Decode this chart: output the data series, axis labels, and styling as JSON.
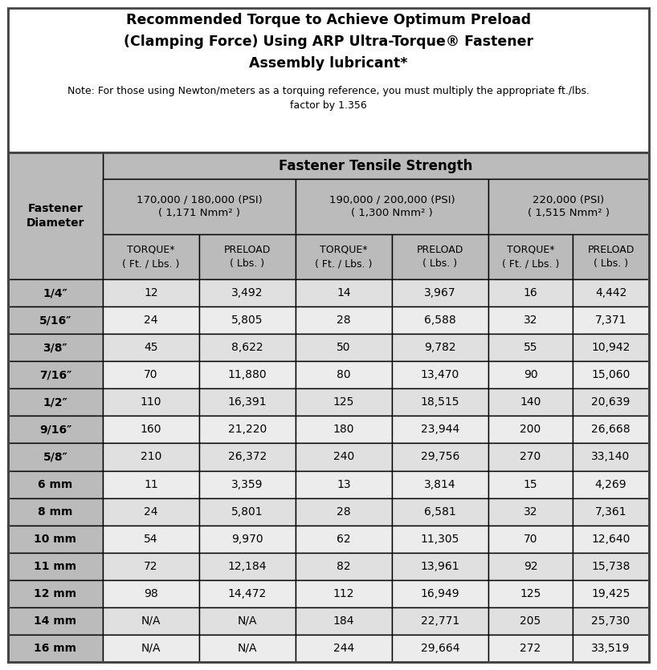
{
  "title_line1": "Recommended Torque to Achieve Optimum Preload",
  "title_line2": "(Clamping Force) Using ARP Ultra-Torque® Fastener",
  "title_line3": "Assembly lubricant*",
  "note_line1": "Note: For those using Newton/meters as a torquing reference, you must multiply the appropriate ft./lbs.",
  "note_line2": "factor by 1.356",
  "col_group_header": "Fastener Tensile Strength",
  "psi_labels": [
    "170,000 / 180,000 (PSI)\n( 1,171 Nmm² )",
    "190,000 / 200,000 (PSI)\n( 1,300 Nmm² )",
    "220,000 (PSI)\n( 1,515 Nmm² )"
  ],
  "sub_labels": [
    "TORQUE*\n( Ft. / Lbs. )",
    "PRELOAD\n( Lbs. )",
    "TORQUE*\n( Ft. / Lbs. )",
    "PRELOAD\n( Lbs. )",
    "TORQUE*\n( Ft. / Lbs. )",
    "PRELOAD\n( Lbs. )"
  ],
  "row_header": "Fastener\nDiameter",
  "rows": [
    [
      "1/4″",
      "12",
      "3,492",
      "14",
      "3,967",
      "16",
      "4,442"
    ],
    [
      "5/16″",
      "24",
      "5,805",
      "28",
      "6,588",
      "32",
      "7,371"
    ],
    [
      "3/8″",
      "45",
      "8,622",
      "50",
      "9,782",
      "55",
      "10,942"
    ],
    [
      "7/16″",
      "70",
      "11,880",
      "80",
      "13,470",
      "90",
      "15,060"
    ],
    [
      "1/2″",
      "110",
      "16,391",
      "125",
      "18,515",
      "140",
      "20,639"
    ],
    [
      "9/16″",
      "160",
      "21,220",
      "180",
      "23,944",
      "200",
      "26,668"
    ],
    [
      "5/8″",
      "210",
      "26,372",
      "240",
      "29,756",
      "270",
      "33,140"
    ],
    [
      "6 mm",
      "11",
      "3,359",
      "13",
      "3,814",
      "15",
      "4,269"
    ],
    [
      "8 mm",
      "24",
      "5,801",
      "28",
      "6,581",
      "32",
      "7,361"
    ],
    [
      "10 mm",
      "54",
      "9,970",
      "62",
      "11,305",
      "70",
      "12,640"
    ],
    [
      "11 mm",
      "72",
      "12,184",
      "82",
      "13,961",
      "92",
      "15,738"
    ],
    [
      "12 mm",
      "98",
      "14,472",
      "112",
      "16,949",
      "125",
      "19,425"
    ],
    [
      "14 mm",
      "N/A",
      "N/A",
      "184",
      "22,771",
      "205",
      "25,730"
    ],
    [
      "16 mm",
      "N/A",
      "N/A",
      "244",
      "29,664",
      "272",
      "33,519"
    ]
  ],
  "bg_color": "#ffffff",
  "header_bg": "#bbbbbb",
  "data_bg_odd": "#e0e0e0",
  "data_bg_even": "#ececec",
  "border_color": "#000000",
  "outer_border": "#555555",
  "title_fontsize": 12.5,
  "note_fontsize": 9.0,
  "header_fontsize": 10.5,
  "subheader_fontsize": 9.5,
  "data_fontsize": 10
}
